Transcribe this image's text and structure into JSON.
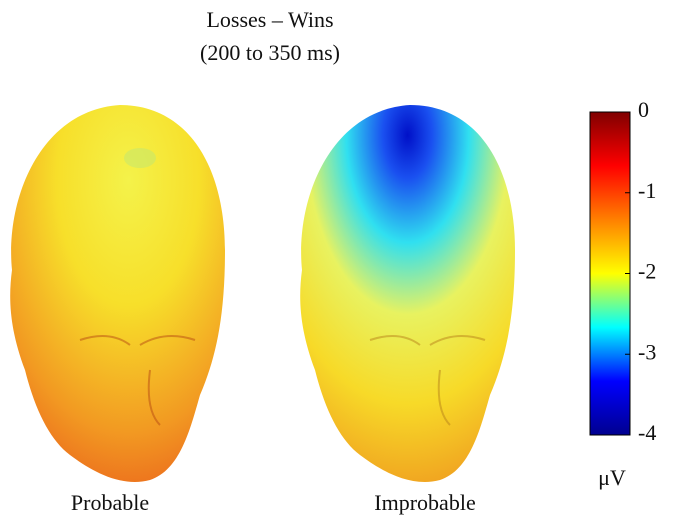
{
  "title": [
    "Losses – Wins",
    "(200 to 350 ms)"
  ],
  "panels": [
    "Probable",
    "Improbable"
  ],
  "colorbar": {
    "lim": [
      -4,
      0
    ],
    "ticks": [
      0,
      -1,
      -2,
      -3,
      -4
    ],
    "unit": "μV",
    "colormap": [
      "#00008f",
      "#0000ff",
      "#00ffff",
      "#ffff00",
      "#ff8000",
      "#ff0000",
      "#800000"
    ]
  }
}
